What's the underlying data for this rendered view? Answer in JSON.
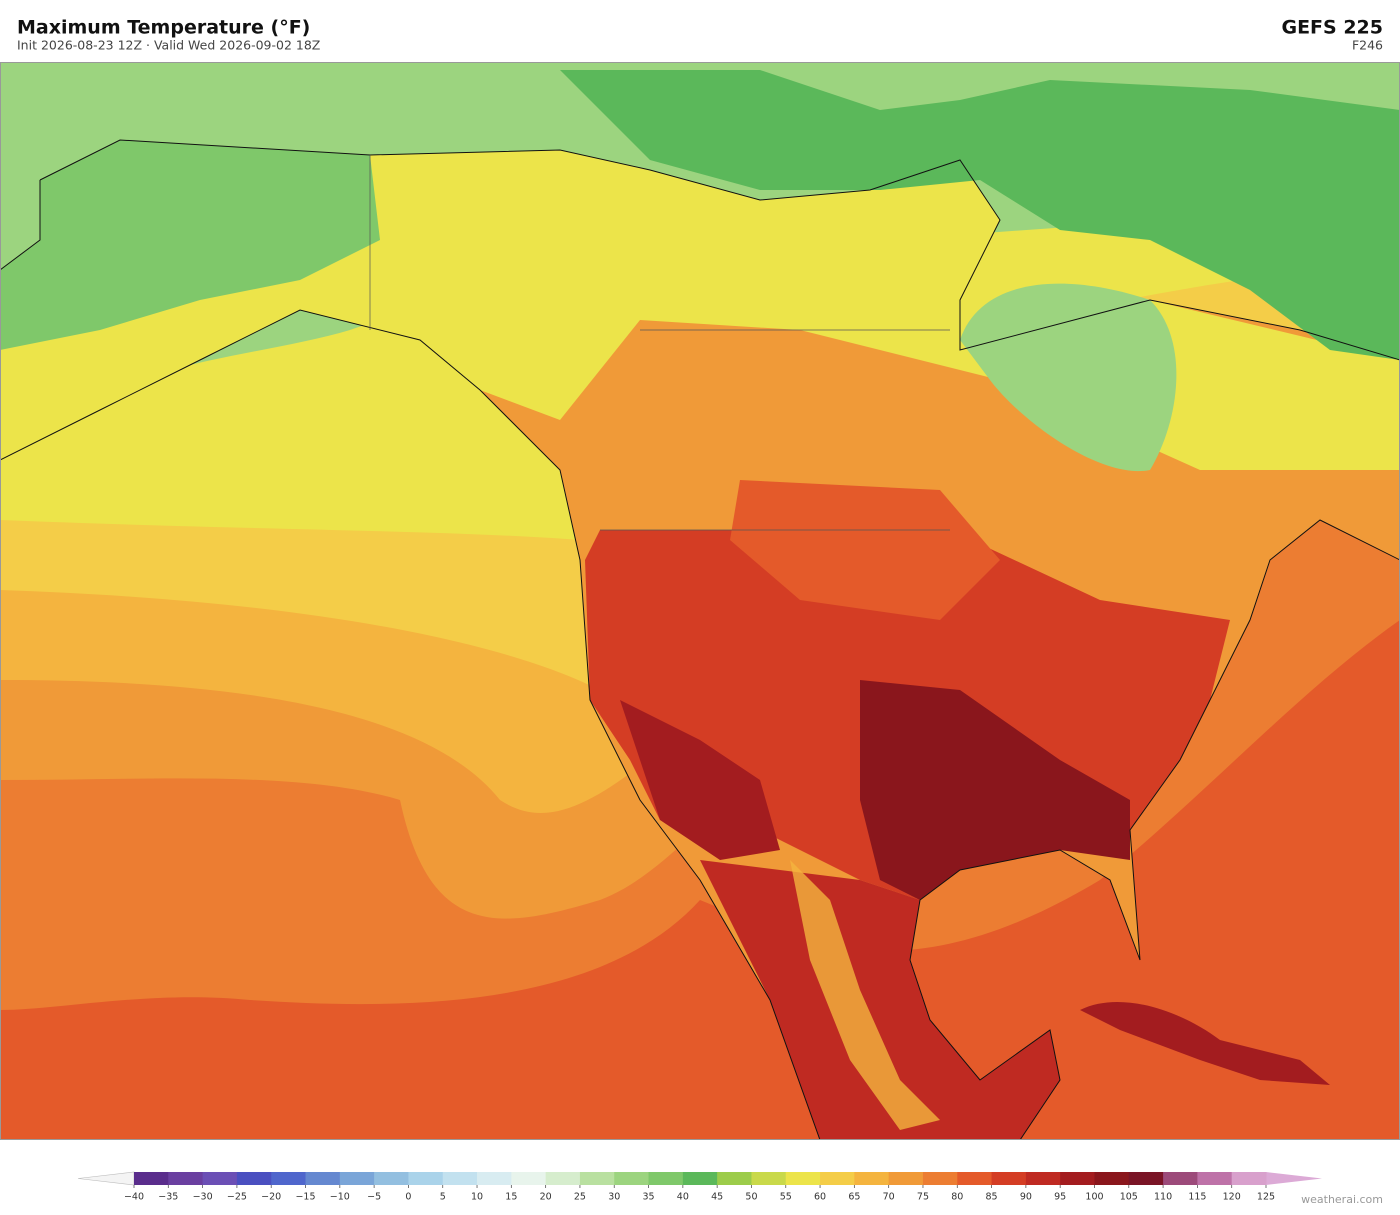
{
  "header": {
    "title": "Maximum Temperature  (°F)",
    "subtitle": "Init 2026-08-23 12Z   ·   Valid Wed 2026-09-02 18Z",
    "model": "GEFS  225",
    "forecast_hour": "F246"
  },
  "colorbar": {
    "ticks": [
      {
        "value": -40,
        "label": "−40"
      },
      {
        "value": -35,
        "label": "−35"
      },
      {
        "value": -30,
        "label": "−30"
      },
      {
        "value": -25,
        "label": "−25"
      },
      {
        "value": -20,
        "label": "−20"
      },
      {
        "value": -15,
        "label": "−15"
      },
      {
        "value": -10,
        "label": "−10"
      },
      {
        "value": -5,
        "label": "−5"
      },
      0,
      5,
      10,
      15,
      20,
      25,
      30,
      35,
      40,
      45,
      50,
      55,
      60,
      65,
      70,
      75,
      80,
      85,
      90,
      95,
      100,
      105,
      110,
      115,
      120,
      125
    ],
    "colors": [
      "#5a2d8c",
      "#6a3fa0",
      "#6b4fb5",
      "#4a4fc0",
      "#4f66cc",
      "#6588d0",
      "#7aa5d8",
      "#93bfe0",
      "#aad3ea",
      "#c2e1ef",
      "#d8ecf1",
      "#e8f4ec",
      "#d6edcd",
      "#b9e0a0",
      "#9cd47f",
      "#7fc86a",
      "#5bb85a",
      "#9ccc4a",
      "#c9d94a",
      "#ece44a",
      "#f4cd48",
      "#f4b43f",
      "#f09a38",
      "#ec7d32",
      "#e45a2a",
      "#d43d24",
      "#bf2a22",
      "#a31c1f",
      "#8a161c",
      "#7a1426",
      "#9c4a7a",
      "#be72a8",
      "#d8a0cc"
    ],
    "under_color": "#f4f4f4",
    "over_color": "#dcaad6"
  },
  "footer": {
    "credit": "weatherai.com"
  }
}
